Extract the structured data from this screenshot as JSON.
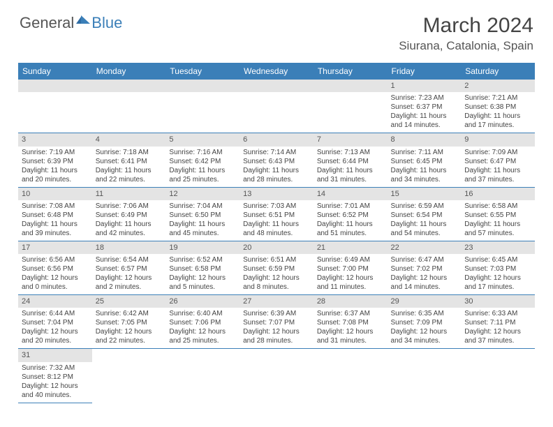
{
  "brand": {
    "part1": "General",
    "part2": "Blue"
  },
  "title": "March 2024",
  "location": "Siurana, Catalonia, Spain",
  "colors": {
    "header_bg": "#3b7fb8",
    "daynum_bg": "#e4e4e4",
    "row_border": "#3b7fb8"
  },
  "weekdays": [
    "Sunday",
    "Monday",
    "Tuesday",
    "Wednesday",
    "Thursday",
    "Friday",
    "Saturday"
  ],
  "weeks": [
    [
      null,
      null,
      null,
      null,
      null,
      {
        "n": "1",
        "sr": "Sunrise: 7:23 AM",
        "ss": "Sunset: 6:37 PM",
        "dl": "Daylight: 11 hours and 14 minutes."
      },
      {
        "n": "2",
        "sr": "Sunrise: 7:21 AM",
        "ss": "Sunset: 6:38 PM",
        "dl": "Daylight: 11 hours and 17 minutes."
      }
    ],
    [
      {
        "n": "3",
        "sr": "Sunrise: 7:19 AM",
        "ss": "Sunset: 6:39 PM",
        "dl": "Daylight: 11 hours and 20 minutes."
      },
      {
        "n": "4",
        "sr": "Sunrise: 7:18 AM",
        "ss": "Sunset: 6:41 PM",
        "dl": "Daylight: 11 hours and 22 minutes."
      },
      {
        "n": "5",
        "sr": "Sunrise: 7:16 AM",
        "ss": "Sunset: 6:42 PM",
        "dl": "Daylight: 11 hours and 25 minutes."
      },
      {
        "n": "6",
        "sr": "Sunrise: 7:14 AM",
        "ss": "Sunset: 6:43 PM",
        "dl": "Daylight: 11 hours and 28 minutes."
      },
      {
        "n": "7",
        "sr": "Sunrise: 7:13 AM",
        "ss": "Sunset: 6:44 PM",
        "dl": "Daylight: 11 hours and 31 minutes."
      },
      {
        "n": "8",
        "sr": "Sunrise: 7:11 AM",
        "ss": "Sunset: 6:45 PM",
        "dl": "Daylight: 11 hours and 34 minutes."
      },
      {
        "n": "9",
        "sr": "Sunrise: 7:09 AM",
        "ss": "Sunset: 6:47 PM",
        "dl": "Daylight: 11 hours and 37 minutes."
      }
    ],
    [
      {
        "n": "10",
        "sr": "Sunrise: 7:08 AM",
        "ss": "Sunset: 6:48 PM",
        "dl": "Daylight: 11 hours and 39 minutes."
      },
      {
        "n": "11",
        "sr": "Sunrise: 7:06 AM",
        "ss": "Sunset: 6:49 PM",
        "dl": "Daylight: 11 hours and 42 minutes."
      },
      {
        "n": "12",
        "sr": "Sunrise: 7:04 AM",
        "ss": "Sunset: 6:50 PM",
        "dl": "Daylight: 11 hours and 45 minutes."
      },
      {
        "n": "13",
        "sr": "Sunrise: 7:03 AM",
        "ss": "Sunset: 6:51 PM",
        "dl": "Daylight: 11 hours and 48 minutes."
      },
      {
        "n": "14",
        "sr": "Sunrise: 7:01 AM",
        "ss": "Sunset: 6:52 PM",
        "dl": "Daylight: 11 hours and 51 minutes."
      },
      {
        "n": "15",
        "sr": "Sunrise: 6:59 AM",
        "ss": "Sunset: 6:54 PM",
        "dl": "Daylight: 11 hours and 54 minutes."
      },
      {
        "n": "16",
        "sr": "Sunrise: 6:58 AM",
        "ss": "Sunset: 6:55 PM",
        "dl": "Daylight: 11 hours and 57 minutes."
      }
    ],
    [
      {
        "n": "17",
        "sr": "Sunrise: 6:56 AM",
        "ss": "Sunset: 6:56 PM",
        "dl": "Daylight: 12 hours and 0 minutes."
      },
      {
        "n": "18",
        "sr": "Sunrise: 6:54 AM",
        "ss": "Sunset: 6:57 PM",
        "dl": "Daylight: 12 hours and 2 minutes."
      },
      {
        "n": "19",
        "sr": "Sunrise: 6:52 AM",
        "ss": "Sunset: 6:58 PM",
        "dl": "Daylight: 12 hours and 5 minutes."
      },
      {
        "n": "20",
        "sr": "Sunrise: 6:51 AM",
        "ss": "Sunset: 6:59 PM",
        "dl": "Daylight: 12 hours and 8 minutes."
      },
      {
        "n": "21",
        "sr": "Sunrise: 6:49 AM",
        "ss": "Sunset: 7:00 PM",
        "dl": "Daylight: 12 hours and 11 minutes."
      },
      {
        "n": "22",
        "sr": "Sunrise: 6:47 AM",
        "ss": "Sunset: 7:02 PM",
        "dl": "Daylight: 12 hours and 14 minutes."
      },
      {
        "n": "23",
        "sr": "Sunrise: 6:45 AM",
        "ss": "Sunset: 7:03 PM",
        "dl": "Daylight: 12 hours and 17 minutes."
      }
    ],
    [
      {
        "n": "24",
        "sr": "Sunrise: 6:44 AM",
        "ss": "Sunset: 7:04 PM",
        "dl": "Daylight: 12 hours and 20 minutes."
      },
      {
        "n": "25",
        "sr": "Sunrise: 6:42 AM",
        "ss": "Sunset: 7:05 PM",
        "dl": "Daylight: 12 hours and 22 minutes."
      },
      {
        "n": "26",
        "sr": "Sunrise: 6:40 AM",
        "ss": "Sunset: 7:06 PM",
        "dl": "Daylight: 12 hours and 25 minutes."
      },
      {
        "n": "27",
        "sr": "Sunrise: 6:39 AM",
        "ss": "Sunset: 7:07 PM",
        "dl": "Daylight: 12 hours and 28 minutes."
      },
      {
        "n": "28",
        "sr": "Sunrise: 6:37 AM",
        "ss": "Sunset: 7:08 PM",
        "dl": "Daylight: 12 hours and 31 minutes."
      },
      {
        "n": "29",
        "sr": "Sunrise: 6:35 AM",
        "ss": "Sunset: 7:09 PM",
        "dl": "Daylight: 12 hours and 34 minutes."
      },
      {
        "n": "30",
        "sr": "Sunrise: 6:33 AM",
        "ss": "Sunset: 7:11 PM",
        "dl": "Daylight: 12 hours and 37 minutes."
      }
    ],
    [
      {
        "n": "31",
        "sr": "Sunrise: 7:32 AM",
        "ss": "Sunset: 8:12 PM",
        "dl": "Daylight: 12 hours and 40 minutes."
      },
      null,
      null,
      null,
      null,
      null,
      null
    ]
  ]
}
